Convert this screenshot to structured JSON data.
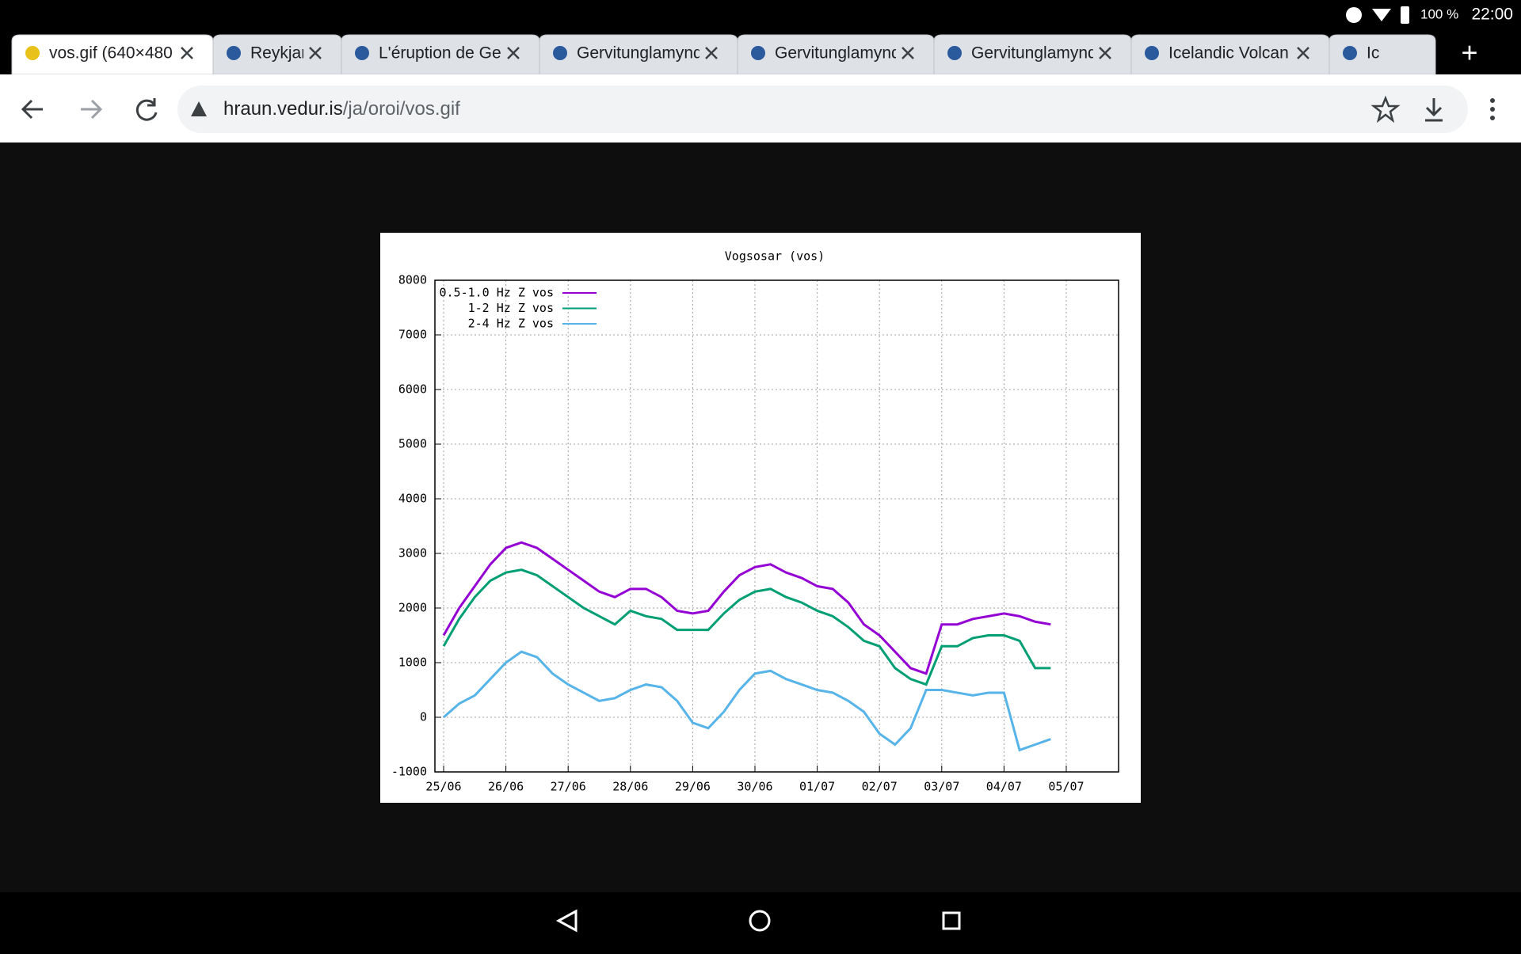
{
  "status_bar": {
    "battery": "100 %",
    "time": "22:00"
  },
  "tabs": [
    "vos.gif (640×480",
    "Reykjan",
    "L'éruption de Gel",
    "Gervitunglamynd",
    "Gervitunglamynd",
    "Gervitunglamynd",
    "Icelandic Volcan",
    "Ic"
  ],
  "address_bar": {
    "host": "hraun.vedur.is",
    "path": "/ja/oroi/vos.gif"
  },
  "chart_data": {
    "type": "line",
    "title": "Vogsosar (vos)",
    "x": [
      0,
      0.25,
      0.5,
      0.75,
      1,
      1.25,
      1.5,
      1.75,
      2,
      2.25,
      2.5,
      2.75,
      3,
      3.25,
      3.5,
      3.75,
      4,
      4.25,
      4.5,
      4.75,
      5,
      5.25,
      5.5,
      5.75,
      6,
      6.25,
      6.5,
      6.75,
      7,
      7.25,
      7.5,
      7.75,
      8,
      8.25,
      8.5,
      8.75,
      9,
      9.25,
      9.5,
      9.75
    ],
    "series": [
      {
        "name": "0.5-1.0 Hz Z vos",
        "color": "#9400d3",
        "values": [
          1500,
          2000,
          2400,
          2800,
          3100,
          3200,
          3100,
          2900,
          2700,
          2500,
          2300,
          2200,
          2350,
          2350,
          2200,
          1950,
          1900,
          1950,
          2300,
          2600,
          2750,
          2800,
          2650,
          2550,
          2400,
          2350,
          2100,
          1700,
          1500,
          1200,
          900,
          800,
          1700,
          1700,
          1800,
          1850,
          1900,
          1850,
          1750,
          1700
        ]
      },
      {
        "name": "1-2 Hz Z vos",
        "color": "#009e73",
        "values": [
          1300,
          1800,
          2200,
          2500,
          2650,
          2700,
          2600,
          2400,
          2200,
          2000,
          1850,
          1700,
          1950,
          1850,
          1800,
          1600,
          1600,
          1600,
          1900,
          2150,
          2300,
          2350,
          2200,
          2100,
          1950,
          1850,
          1650,
          1400,
          1300,
          900,
          700,
          600,
          1300,
          1300,
          1450,
          1500,
          1500,
          1400,
          900,
          900
        ]
      },
      {
        "name": "2-4 Hz Z vos",
        "color": "#56b4e9",
        "values": [
          0,
          250,
          400,
          700,
          1000,
          1200,
          1100,
          800,
          600,
          450,
          300,
          350,
          500,
          600,
          550,
          300,
          -100,
          -200,
          100,
          500,
          800,
          850,
          700,
          600,
          500,
          450,
          300,
          100,
          -300,
          -500,
          -200,
          500,
          500,
          450,
          400,
          450,
          450,
          -600,
          -500,
          -400
        ]
      }
    ],
    "xlim": [
      -0.14,
      10.84
    ],
    "xticks": [
      {
        "value": 0,
        "label": "25/06"
      },
      {
        "value": 1,
        "label": "26/06"
      },
      {
        "value": 2,
        "label": "27/06"
      },
      {
        "value": 3,
        "label": "28/06"
      },
      {
        "value": 4,
        "label": "29/06"
      },
      {
        "value": 5,
        "label": "30/06"
      },
      {
        "value": 6,
        "label": "01/07"
      },
      {
        "value": 7,
        "label": "02/07"
      },
      {
        "value": 8,
        "label": "03/07"
      },
      {
        "value": 9,
        "label": "04/07"
      },
      {
        "value": 10,
        "label": "05/07"
      }
    ],
    "ylim": [
      -1000,
      8000
    ],
    "yticks": [
      -1000,
      0,
      1000,
      2000,
      3000,
      4000,
      5000,
      6000,
      7000,
      8000
    ],
    "grid": true,
    "legend": "top-left"
  }
}
